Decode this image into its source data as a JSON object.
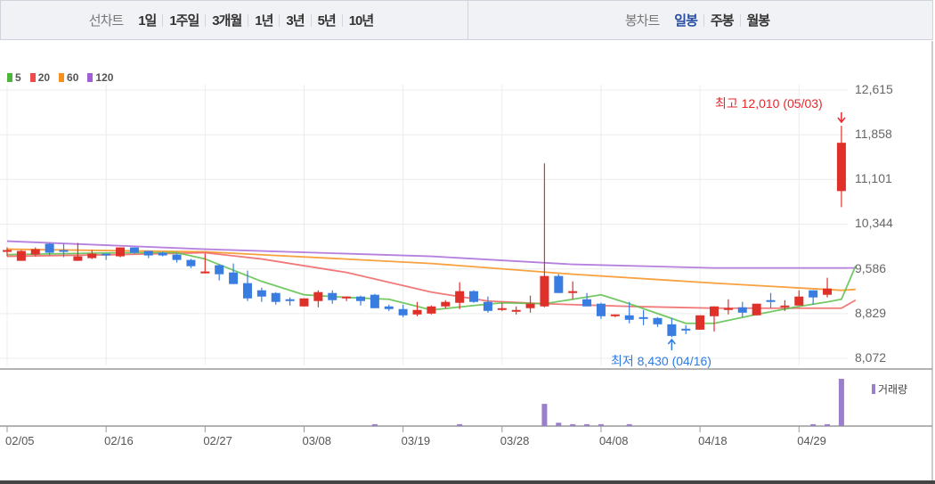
{
  "toolbar": {
    "line_chart_label": "선차트",
    "line_periods": [
      "1일",
      "1주일",
      "3개월",
      "1년",
      "3년",
      "5년",
      "10년"
    ],
    "candle_chart_label": "봉차트",
    "candle_periods": [
      "일봉",
      "주봉",
      "월봉"
    ],
    "active_candle_period": "일봉"
  },
  "chart_data": {
    "type": "candlestick",
    "legend": [
      {
        "name": "5",
        "color": "#4db53c"
      },
      {
        "name": "20",
        "color": "#ef4b4b"
      },
      {
        "name": "60",
        "color": "#f7901e"
      },
      {
        "name": "120",
        "color": "#a25fd3"
      }
    ],
    "y_ticks": [
      "12,615",
      "11,858",
      "11,101",
      "10,344",
      "9,586",
      "8,829",
      "8,072"
    ],
    "y_tick_values": [
      12615,
      11858,
      11101,
      10344,
      9586,
      8829,
      8072
    ],
    "ylim": [
      8072,
      12615
    ],
    "x_ticks": [
      {
        "index": 0,
        "label": "02/05"
      },
      {
        "index": 7,
        "label": "02/16"
      },
      {
        "index": 14,
        "label": "02/27"
      },
      {
        "index": 21,
        "label": "03/08"
      },
      {
        "index": 28,
        "label": "03/19"
      },
      {
        "index": 35,
        "label": "03/28"
      },
      {
        "index": 42,
        "label": "04/08"
      },
      {
        "index": 49,
        "label": "04/18"
      },
      {
        "index": 56,
        "label": "04/29"
      }
    ],
    "up_color": "#e0302a",
    "down_color": "#3a7de0",
    "ohlc": [
      [
        9890,
        9950,
        9799,
        9905
      ],
      [
        9723,
        9905,
        9723,
        9890
      ],
      [
        9829,
        9950,
        9799,
        9920
      ],
      [
        10011,
        10026,
        9814,
        9860
      ],
      [
        9905,
        10011,
        9784,
        9890
      ],
      [
        9723,
        10026,
        9723,
        9799
      ],
      [
        9769,
        9905,
        9754,
        9844
      ],
      [
        9844,
        9844,
        9738,
        9829
      ],
      [
        9799,
        9950,
        9784,
        9950
      ],
      [
        9950,
        9950,
        9844,
        9860
      ],
      [
        9890,
        9890,
        9769,
        9814
      ],
      [
        9860,
        9875,
        9799,
        9814
      ],
      [
        9829,
        9844,
        9693,
        9738
      ],
      [
        9738,
        9754,
        9602,
        9632
      ],
      [
        9511,
        9844,
        9511,
        9542
      ],
      [
        9648,
        9663,
        9390,
        9496
      ],
      [
        9526,
        9678,
        9330,
        9330
      ],
      [
        9345,
        9557,
        9042,
        9087
      ],
      [
        9224,
        9269,
        9027,
        9118
      ],
      [
        9178,
        9193,
        8981,
        9027
      ],
      [
        9072,
        9103,
        8966,
        9057
      ],
      [
        8951,
        9087,
        8951,
        9087
      ],
      [
        9042,
        9224,
        8936,
        9193
      ],
      [
        9178,
        9224,
        8997,
        9057
      ],
      [
        9087,
        9118,
        9042,
        9118
      ],
      [
        9118,
        9133,
        8966,
        9042
      ],
      [
        9148,
        9163,
        8921,
        8921
      ],
      [
        8951,
        8981,
        8875,
        8906
      ],
      [
        8906,
        8981,
        8769,
        8800
      ],
      [
        8815,
        9027,
        8785,
        8891
      ],
      [
        8830,
        8966,
        8815,
        8951
      ],
      [
        8951,
        9057,
        8921,
        9027
      ],
      [
        9012,
        9360,
        8906,
        9209
      ],
      [
        9209,
        9224,
        9012,
        9027
      ],
      [
        9027,
        9118,
        8845,
        8875
      ],
      [
        8906,
        9012,
        8875,
        8921
      ],
      [
        8875,
        8951,
        8815,
        8891
      ],
      [
        8921,
        9133,
        8845,
        8997
      ],
      [
        8951,
        11374,
        8936,
        9466
      ],
      [
        9466,
        9497,
        9178,
        9178
      ],
      [
        9178,
        9375,
        9072,
        9209
      ],
      [
        9072,
        9178,
        8951,
        8951
      ],
      [
        8997,
        9012,
        8739,
        8785
      ],
      [
        8785,
        8815,
        8769,
        8815
      ],
      [
        8800,
        9027,
        8664,
        8724
      ],
      [
        8769,
        8891,
        8633,
        8754
      ],
      [
        8754,
        8769,
        8603,
        8648
      ],
      [
        8648,
        8754,
        8430,
        8451
      ],
      [
        8573,
        8633,
        8482,
        8557
      ],
      [
        8557,
        8800,
        8557,
        8800
      ],
      [
        8785,
        8951,
        8527,
        8951
      ],
      [
        8906,
        9072,
        8815,
        8921
      ],
      [
        8936,
        9027,
        8769,
        8845
      ],
      [
        8800,
        8997,
        8800,
        8997
      ],
      [
        9057,
        9178,
        8921,
        9042
      ],
      [
        8951,
        9057,
        8875,
        8966
      ],
      [
        8966,
        9224,
        8966,
        9118
      ],
      [
        9224,
        9224,
        8981,
        9103
      ],
      [
        9148,
        9436,
        9103,
        9254
      ],
      [
        10904,
        12010,
        10632,
        11722
      ]
    ],
    "moving_averages": {
      "5": [
        [
          0,
          9829
        ],
        [
          8,
          9860
        ],
        [
          12,
          9860
        ],
        [
          14,
          9754
        ],
        [
          18,
          9375
        ],
        [
          21,
          9148
        ],
        [
          24,
          9103
        ],
        [
          27,
          9072
        ],
        [
          30,
          8891
        ],
        [
          33,
          8966
        ],
        [
          35,
          9012
        ],
        [
          38,
          8997
        ],
        [
          40,
          9072
        ],
        [
          42,
          9148
        ],
        [
          44,
          8997
        ],
        [
          48,
          8664
        ],
        [
          50,
          8664
        ],
        [
          53,
          8815
        ],
        [
          56,
          8951
        ],
        [
          58,
          9027
        ],
        [
          59,
          9072
        ],
        [
          60,
          9632
        ]
      ],
      "20": [
        [
          0,
          9799
        ],
        [
          8,
          9829
        ],
        [
          14,
          9860
        ],
        [
          18,
          9754
        ],
        [
          24,
          9526
        ],
        [
          30,
          9193
        ],
        [
          34,
          9042
        ],
        [
          38,
          8997
        ],
        [
          44,
          8951
        ],
        [
          50,
          8921
        ],
        [
          59,
          8921
        ],
        [
          60,
          9057
        ]
      ],
      "60": [
        [
          0,
          9920
        ],
        [
          14,
          9875
        ],
        [
          30,
          9678
        ],
        [
          40,
          9496
        ],
        [
          50,
          9345
        ],
        [
          59,
          9224
        ],
        [
          60,
          9239
        ]
      ],
      "120": [
        [
          0,
          10056
        ],
        [
          14,
          9920
        ],
        [
          30,
          9799
        ],
        [
          40,
          9663
        ],
        [
          50,
          9602
        ],
        [
          60,
          9602
        ]
      ]
    },
    "annotations": {
      "high": {
        "text": "최고 12,010 (05/03)",
        "value": 12010,
        "index": 59,
        "color": "#e8262b"
      },
      "low": {
        "text": "최저 8,430 (04/16)",
        "value": 8430,
        "index": 47,
        "color": "#2f7ce0"
      }
    },
    "volume_label": "거래량",
    "volume_color": "#9c7fcb",
    "volume_relative": {
      "26": 4,
      "32": 4,
      "38": 47,
      "39": 7,
      "40": 4,
      "41": 4,
      "42": 4,
      "44": 4,
      "57": 4,
      "58": 4,
      "59": 100
    }
  }
}
